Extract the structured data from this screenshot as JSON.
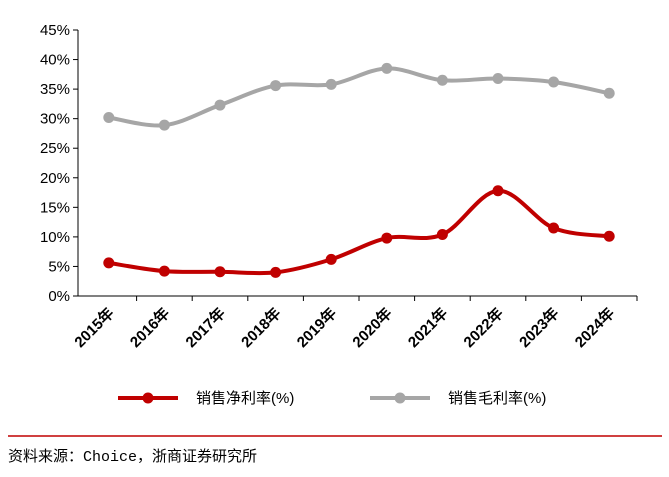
{
  "chart_data": {
    "type": "line",
    "categories": [
      "2015年",
      "2016年",
      "2017年",
      "2018年",
      "2019年",
      "2020年",
      "2021年",
      "2022年",
      "2023年",
      "2024年"
    ],
    "series": [
      {
        "name": "销售净利率(%)",
        "color": "#c00000",
        "values": [
          5.6,
          4.2,
          4.1,
          4.0,
          6.2,
          9.8,
          10.4,
          17.8,
          11.5,
          10.1
        ]
      },
      {
        "name": "销售毛利率(%)",
        "color": "#a6a6a6",
        "values": [
          30.2,
          28.9,
          32.3,
          35.6,
          35.8,
          38.5,
          36.5,
          36.8,
          36.2,
          34.3
        ]
      }
    ],
    "ylim": [
      0,
      45
    ],
    "yticks": [
      {
        "value": 0,
        "label": "0%"
      },
      {
        "value": 5,
        "label": "5%"
      },
      {
        "value": 10,
        "label": "10%"
      },
      {
        "value": 15,
        "label": "15%"
      },
      {
        "value": 20,
        "label": "20%"
      },
      {
        "value": 25,
        "label": "25%"
      },
      {
        "value": 30,
        "label": "30%"
      },
      {
        "value": 35,
        "label": "35%"
      },
      {
        "value": 40,
        "label": "40%"
      },
      {
        "value": 45,
        "label": "45%"
      }
    ],
    "grid": false,
    "legend": "bottom",
    "source": "资料来源：Choice，浙商证券研究所"
  }
}
